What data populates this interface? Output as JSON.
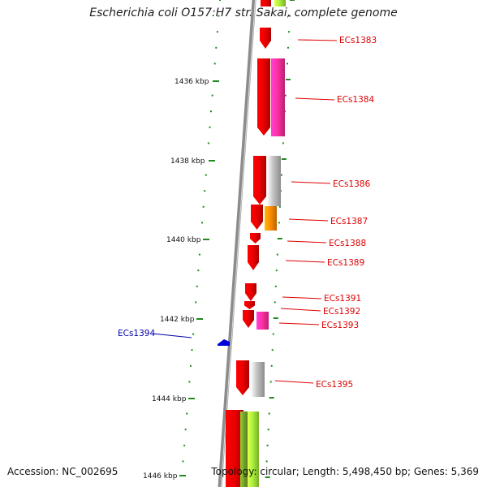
{
  "title": "Escherichia coli O157:H7 str. Sakai, complete genome",
  "accession": "Accession: NC_002695",
  "topology": "Topology: circular; Length: 5,498,450 bp; Genes: 5,369",
  "colors": {
    "backbone": "#8c8c8c",
    "gene_red": "#ee0000",
    "gene_pink": "#ff2fa2",
    "gene_grey": "#c2c2c2",
    "gene_orange": "#ff8c00",
    "gene_lime": "#aaf03c",
    "gene_olive": "#6d9a26",
    "gene_blue": "#0000dd",
    "tick_green": "#1f8a1f",
    "label_red": "#dd0000",
    "label_blue": "#0000aa"
  },
  "kbp_ticks": [
    {
      "label": "1436 kbp"
    },
    {
      "label": "1438 kbp"
    },
    {
      "label": "1440 kbp"
    },
    {
      "label": "1442 kbp"
    },
    {
      "label": "1444 kbp"
    },
    {
      "label": "1446 kbp"
    }
  ],
  "gene_labels": [
    {
      "name": "ECs1383",
      "strand": "forward"
    },
    {
      "name": "ECs1384",
      "strand": "forward"
    },
    {
      "name": "ECs1386",
      "strand": "forward"
    },
    {
      "name": "ECs1387",
      "strand": "forward"
    },
    {
      "name": "ECs1388",
      "strand": "forward"
    },
    {
      "name": "ECs1389",
      "strand": "forward"
    },
    {
      "name": "ECs1391",
      "strand": "forward"
    },
    {
      "name": "ECs1392",
      "strand": "forward"
    },
    {
      "name": "ECs1393",
      "strand": "forward"
    },
    {
      "name": "ECs1394",
      "strand": "reverse"
    },
    {
      "name": "ECs1395",
      "strand": "forward"
    }
  ]
}
